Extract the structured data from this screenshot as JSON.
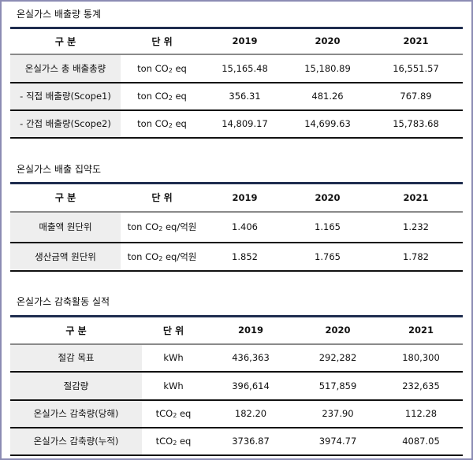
{
  "tables": [
    {
      "title": "온실가스 배출량 통계",
      "headers": [
        "구 분",
        "단 위",
        "2019",
        "2020",
        "2021"
      ],
      "rows": [
        {
          "label": "온실가스 총 배출총량",
          "unit_pre": "ton CO",
          "unit_sub": "2",
          "unit_post": " eq",
          "values": [
            "15,165.48",
            "15,180.89",
            "16,551.57"
          ]
        },
        {
          "label": "- 직접 배출량(Scope1)",
          "unit_pre": "ton CO",
          "unit_sub": "2",
          "unit_post": " eq",
          "values": [
            "356.31",
            "481.26",
            "767.89"
          ]
        },
        {
          "label": "- 간접 배출량(Scope2)",
          "unit_pre": "ton CO",
          "unit_sub": "2",
          "unit_post": " eq",
          "values": [
            "14,809.17",
            "14,699.63",
            "15,783.68"
          ]
        }
      ]
    },
    {
      "title": "온실가스 배출 집약도",
      "headers": [
        "구 분",
        "단 위",
        "2019",
        "2020",
        "2021"
      ],
      "rows": [
        {
          "label": "매출액 원단위",
          "unit_pre": "ton CO",
          "unit_sub": "2",
          "unit_post": " eq/억원",
          "values": [
            "1.406",
            "1.165",
            "1.232"
          ]
        },
        {
          "label": "생산금액 원단위",
          "unit_pre": "ton CO",
          "unit_sub": "2",
          "unit_post": " eq/억원",
          "values": [
            "1.852",
            "1.765",
            "1.782"
          ]
        }
      ]
    },
    {
      "title": "온실가스 감축활동 실적",
      "headers": [
        "구 분",
        "단 위",
        "2019",
        "2020",
        "2021"
      ],
      "rows": [
        {
          "label": "절감 목표",
          "unit_pre": "kWh",
          "unit_sub": "",
          "unit_post": "",
          "values": [
            "436,363",
            "292,282",
            "180,300"
          ]
        },
        {
          "label": "절감량",
          "unit_pre": "kWh",
          "unit_sub": "",
          "unit_post": "",
          "values": [
            "396,614",
            "517,859",
            "232,635"
          ]
        },
        {
          "label": "온실가스 감축량(당해)",
          "unit_pre": "tCO",
          "unit_sub": "2",
          "unit_post": " eq",
          "values": [
            "182.20",
            "237.90",
            "112.28"
          ]
        },
        {
          "label": "온실가스 감축량(누적)",
          "unit_pre": "tCO",
          "unit_sub": "2",
          "unit_post": " eq",
          "values": [
            "3736.87",
            "3974.77",
            "4087.05"
          ]
        }
      ]
    }
  ]
}
